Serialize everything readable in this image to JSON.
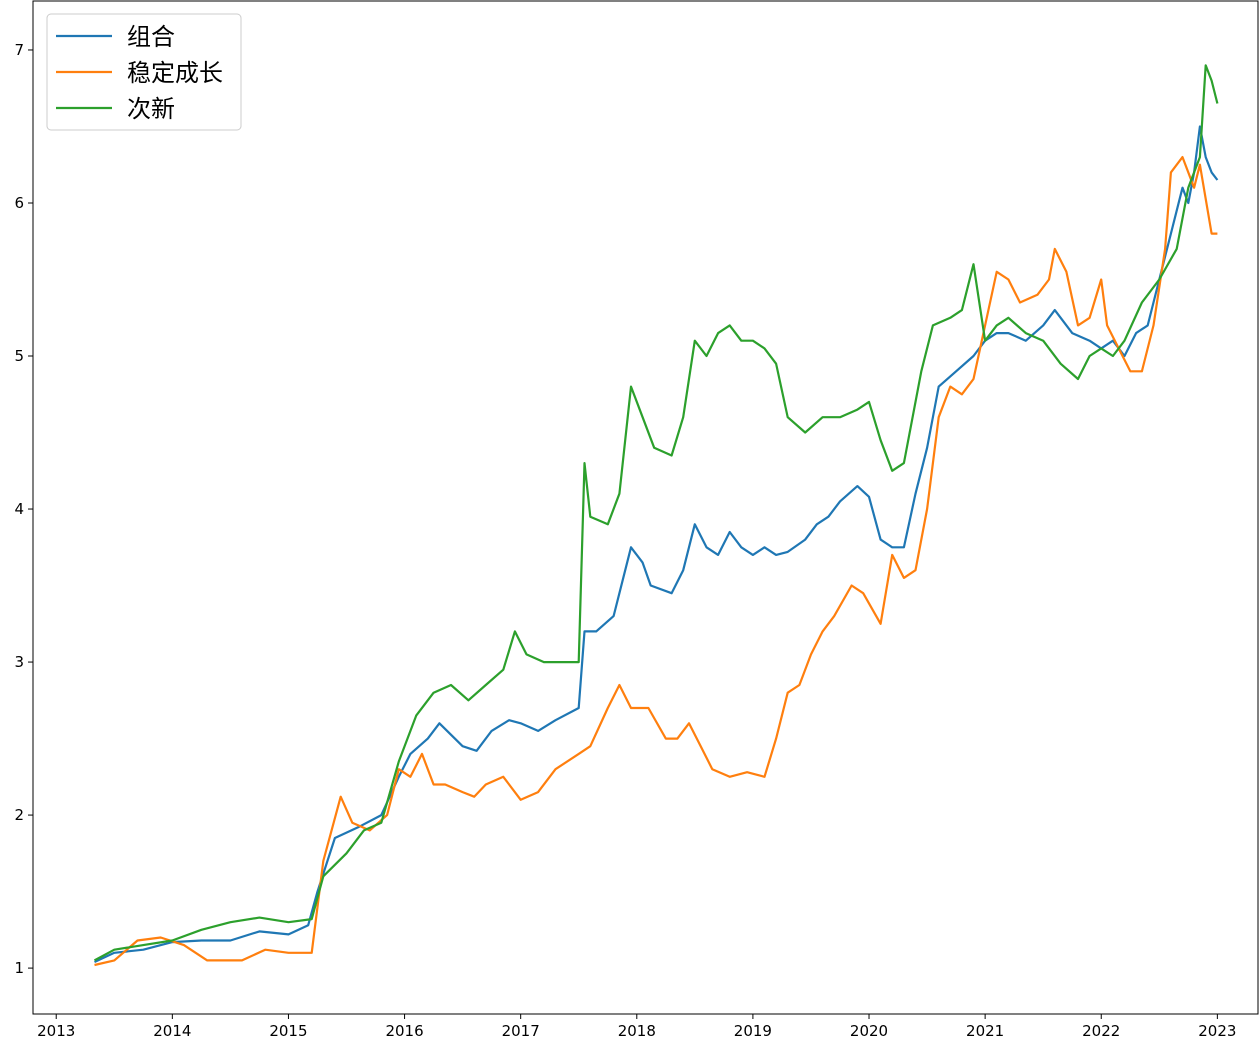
{
  "chart_data": {
    "type": "line",
    "title": "",
    "xlabel": "",
    "ylabel": "",
    "xlim": [
      2012.8,
      2023.35
    ],
    "ylim": [
      0.7,
      7.32
    ],
    "x_ticks": [
      {
        "value": 2013,
        "label": "2013"
      },
      {
        "value": 2014,
        "label": "2014"
      },
      {
        "value": 2015,
        "label": "2015"
      },
      {
        "value": 2016,
        "label": "2016"
      },
      {
        "value": 2017,
        "label": "2017"
      },
      {
        "value": 2018,
        "label": "2018"
      },
      {
        "value": 2019,
        "label": "2019"
      },
      {
        "value": 2020,
        "label": "2020"
      },
      {
        "value": 2021,
        "label": "2021"
      },
      {
        "value": 2022,
        "label": "2022"
      },
      {
        "value": 2023,
        "label": "2023"
      }
    ],
    "y_ticks": [
      {
        "value": 1,
        "label": "1"
      },
      {
        "value": 2,
        "label": "2"
      },
      {
        "value": 3,
        "label": "3"
      },
      {
        "value": 4,
        "label": "4"
      },
      {
        "value": 5,
        "label": "5"
      },
      {
        "value": 6,
        "label": "6"
      },
      {
        "value": 7,
        "label": "7"
      }
    ],
    "grid": false,
    "legend": "top-left",
    "series": [
      {
        "name": "组合",
        "color": "#1f77b4",
        "points": [
          [
            2013.33,
            1.04
          ],
          [
            2013.5,
            1.1
          ],
          [
            2013.75,
            1.12
          ],
          [
            2014.0,
            1.17
          ],
          [
            2014.25,
            1.18
          ],
          [
            2014.5,
            1.18
          ],
          [
            2014.75,
            1.24
          ],
          [
            2015.0,
            1.22
          ],
          [
            2015.17,
            1.28
          ],
          [
            2015.25,
            1.5
          ],
          [
            2015.4,
            1.85
          ],
          [
            2015.6,
            1.92
          ],
          [
            2015.8,
            2.0
          ],
          [
            2015.95,
            2.25
          ],
          [
            2016.05,
            2.4
          ],
          [
            2016.2,
            2.5
          ],
          [
            2016.3,
            2.6
          ],
          [
            2016.5,
            2.45
          ],
          [
            2016.62,
            2.42
          ],
          [
            2016.75,
            2.55
          ],
          [
            2016.9,
            2.62
          ],
          [
            2017.0,
            2.6
          ],
          [
            2017.15,
            2.55
          ],
          [
            2017.3,
            2.62
          ],
          [
            2017.5,
            2.7
          ],
          [
            2017.55,
            3.2
          ],
          [
            2017.65,
            3.2
          ],
          [
            2017.8,
            3.3
          ],
          [
            2017.95,
            3.75
          ],
          [
            2018.05,
            3.65
          ],
          [
            2018.12,
            3.5
          ],
          [
            2018.3,
            3.45
          ],
          [
            2018.4,
            3.6
          ],
          [
            2018.5,
            3.9
          ],
          [
            2018.6,
            3.75
          ],
          [
            2018.7,
            3.7
          ],
          [
            2018.8,
            3.85
          ],
          [
            2018.9,
            3.75
          ],
          [
            2019.0,
            3.7
          ],
          [
            2019.1,
            3.75
          ],
          [
            2019.2,
            3.7
          ],
          [
            2019.3,
            3.72
          ],
          [
            2019.45,
            3.8
          ],
          [
            2019.55,
            3.9
          ],
          [
            2019.65,
            3.95
          ],
          [
            2019.75,
            4.05
          ],
          [
            2019.9,
            4.15
          ],
          [
            2020.0,
            4.08
          ],
          [
            2020.1,
            3.8
          ],
          [
            2020.2,
            3.75
          ],
          [
            2020.3,
            3.75
          ],
          [
            2020.4,
            4.1
          ],
          [
            2020.5,
            4.4
          ],
          [
            2020.6,
            4.8
          ],
          [
            2020.75,
            4.9
          ],
          [
            2020.9,
            5.0
          ],
          [
            2021.0,
            5.1
          ],
          [
            2021.1,
            5.15
          ],
          [
            2021.2,
            5.15
          ],
          [
            2021.35,
            5.1
          ],
          [
            2021.5,
            5.2
          ],
          [
            2021.6,
            5.3
          ],
          [
            2021.75,
            5.15
          ],
          [
            2021.9,
            5.1
          ],
          [
            2022.0,
            5.05
          ],
          [
            2022.1,
            5.1
          ],
          [
            2022.2,
            5.0
          ],
          [
            2022.3,
            5.15
          ],
          [
            2022.4,
            5.2
          ],
          [
            2022.5,
            5.5
          ],
          [
            2022.6,
            5.8
          ],
          [
            2022.7,
            6.1
          ],
          [
            2022.75,
            6.0
          ],
          [
            2022.8,
            6.2
          ],
          [
            2022.85,
            6.5
          ],
          [
            2022.9,
            6.3
          ],
          [
            2022.95,
            6.2
          ],
          [
            2023.0,
            6.15
          ]
        ]
      },
      {
        "name": "稳定成长",
        "color": "#ff7f0e",
        "points": [
          [
            2013.33,
            1.02
          ],
          [
            2013.5,
            1.05
          ],
          [
            2013.7,
            1.18
          ],
          [
            2013.9,
            1.2
          ],
          [
            2014.1,
            1.15
          ],
          [
            2014.3,
            1.05
          ],
          [
            2014.6,
            1.05
          ],
          [
            2014.8,
            1.12
          ],
          [
            2015.0,
            1.1
          ],
          [
            2015.2,
            1.1
          ],
          [
            2015.3,
            1.7
          ],
          [
            2015.45,
            2.12
          ],
          [
            2015.55,
            1.95
          ],
          [
            2015.7,
            1.9
          ],
          [
            2015.85,
            2.0
          ],
          [
            2015.95,
            2.3
          ],
          [
            2016.05,
            2.25
          ],
          [
            2016.15,
            2.4
          ],
          [
            2016.25,
            2.2
          ],
          [
            2016.35,
            2.2
          ],
          [
            2016.5,
            2.15
          ],
          [
            2016.6,
            2.12
          ],
          [
            2016.7,
            2.2
          ],
          [
            2016.85,
            2.25
          ],
          [
            2017.0,
            2.1
          ],
          [
            2017.15,
            2.15
          ],
          [
            2017.3,
            2.3
          ],
          [
            2017.5,
            2.4
          ],
          [
            2017.6,
            2.45
          ],
          [
            2017.75,
            2.7
          ],
          [
            2017.85,
            2.85
          ],
          [
            2017.95,
            2.7
          ],
          [
            2018.1,
            2.7
          ],
          [
            2018.25,
            2.5
          ],
          [
            2018.35,
            2.5
          ],
          [
            2018.45,
            2.6
          ],
          [
            2018.55,
            2.45
          ],
          [
            2018.65,
            2.3
          ],
          [
            2018.8,
            2.25
          ],
          [
            2018.95,
            2.28
          ],
          [
            2019.1,
            2.25
          ],
          [
            2019.2,
            2.5
          ],
          [
            2019.3,
            2.8
          ],
          [
            2019.4,
            2.85
          ],
          [
            2019.5,
            3.05
          ],
          [
            2019.6,
            3.2
          ],
          [
            2019.7,
            3.3
          ],
          [
            2019.85,
            3.5
          ],
          [
            2019.95,
            3.45
          ],
          [
            2020.1,
            3.25
          ],
          [
            2020.2,
            3.7
          ],
          [
            2020.3,
            3.55
          ],
          [
            2020.4,
            3.6
          ],
          [
            2020.5,
            4.0
          ],
          [
            2020.6,
            4.6
          ],
          [
            2020.7,
            4.8
          ],
          [
            2020.8,
            4.75
          ],
          [
            2020.9,
            4.85
          ],
          [
            2021.0,
            5.2
          ],
          [
            2021.1,
            5.55
          ],
          [
            2021.2,
            5.5
          ],
          [
            2021.3,
            5.35
          ],
          [
            2021.45,
            5.4
          ],
          [
            2021.55,
            5.5
          ],
          [
            2021.6,
            5.7
          ],
          [
            2021.7,
            5.55
          ],
          [
            2021.8,
            5.2
          ],
          [
            2021.9,
            5.25
          ],
          [
            2022.0,
            5.5
          ],
          [
            2022.05,
            5.2
          ],
          [
            2022.15,
            5.05
          ],
          [
            2022.25,
            4.9
          ],
          [
            2022.35,
            4.9
          ],
          [
            2022.45,
            5.2
          ],
          [
            2022.55,
            5.7
          ],
          [
            2022.6,
            6.2
          ],
          [
            2022.7,
            6.3
          ],
          [
            2022.8,
            6.1
          ],
          [
            2022.85,
            6.25
          ],
          [
            2022.95,
            5.8
          ],
          [
            2023.0,
            5.8
          ]
        ]
      },
      {
        "name": "次新",
        "color": "#2ca02c",
        "points": [
          [
            2013.33,
            1.05
          ],
          [
            2013.5,
            1.12
          ],
          [
            2013.75,
            1.15
          ],
          [
            2014.0,
            1.18
          ],
          [
            2014.25,
            1.25
          ],
          [
            2014.5,
            1.3
          ],
          [
            2014.75,
            1.33
          ],
          [
            2015.0,
            1.3
          ],
          [
            2015.2,
            1.32
          ],
          [
            2015.3,
            1.6
          ],
          [
            2015.5,
            1.75
          ],
          [
            2015.65,
            1.9
          ],
          [
            2015.8,
            1.95
          ],
          [
            2015.95,
            2.35
          ],
          [
            2016.1,
            2.65
          ],
          [
            2016.25,
            2.8
          ],
          [
            2016.4,
            2.85
          ],
          [
            2016.55,
            2.75
          ],
          [
            2016.7,
            2.85
          ],
          [
            2016.85,
            2.95
          ],
          [
            2016.95,
            3.2
          ],
          [
            2017.05,
            3.05
          ],
          [
            2017.2,
            3.0
          ],
          [
            2017.4,
            3.0
          ],
          [
            2017.5,
            3.0
          ],
          [
            2017.55,
            4.3
          ],
          [
            2017.6,
            3.95
          ],
          [
            2017.75,
            3.9
          ],
          [
            2017.85,
            4.1
          ],
          [
            2017.95,
            4.8
          ],
          [
            2018.05,
            4.6
          ],
          [
            2018.15,
            4.4
          ],
          [
            2018.3,
            4.35
          ],
          [
            2018.4,
            4.6
          ],
          [
            2018.5,
            5.1
          ],
          [
            2018.6,
            5.0
          ],
          [
            2018.7,
            5.15
          ],
          [
            2018.8,
            5.2
          ],
          [
            2018.9,
            5.1
          ],
          [
            2019.0,
            5.1
          ],
          [
            2019.1,
            5.05
          ],
          [
            2019.2,
            4.95
          ],
          [
            2019.3,
            4.6
          ],
          [
            2019.45,
            4.5
          ],
          [
            2019.6,
            4.6
          ],
          [
            2019.75,
            4.6
          ],
          [
            2019.9,
            4.65
          ],
          [
            2020.0,
            4.7
          ],
          [
            2020.1,
            4.45
          ],
          [
            2020.2,
            4.25
          ],
          [
            2020.3,
            4.3
          ],
          [
            2020.45,
            4.9
          ],
          [
            2020.55,
            5.2
          ],
          [
            2020.7,
            5.25
          ],
          [
            2020.8,
            5.3
          ],
          [
            2020.9,
            5.6
          ],
          [
            2021.0,
            5.1
          ],
          [
            2021.1,
            5.2
          ],
          [
            2021.2,
            5.25
          ],
          [
            2021.35,
            5.15
          ],
          [
            2021.5,
            5.1
          ],
          [
            2021.65,
            4.95
          ],
          [
            2021.8,
            4.85
          ],
          [
            2021.9,
            5.0
          ],
          [
            2022.0,
            5.05
          ],
          [
            2022.1,
            5.0
          ],
          [
            2022.2,
            5.1
          ],
          [
            2022.35,
            5.35
          ],
          [
            2022.5,
            5.5
          ],
          [
            2022.65,
            5.7
          ],
          [
            2022.75,
            6.1
          ],
          [
            2022.85,
            6.3
          ],
          [
            2022.9,
            6.9
          ],
          [
            2022.95,
            6.8
          ],
          [
            2023.0,
            6.65
          ]
        ]
      }
    ]
  }
}
